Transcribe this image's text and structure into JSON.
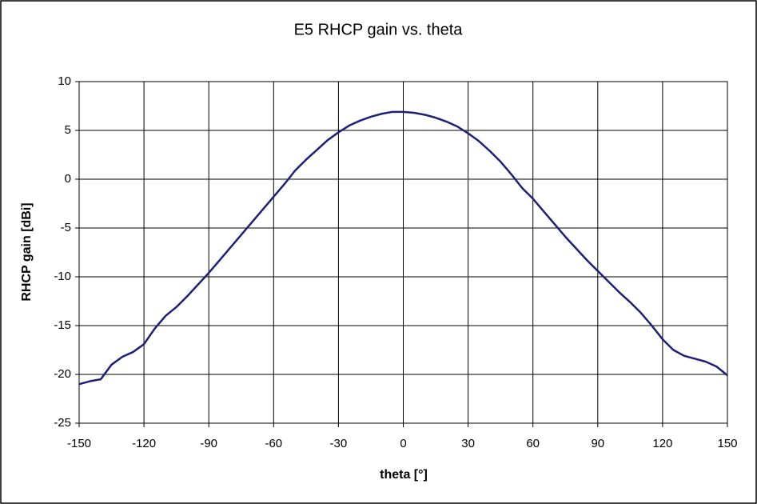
{
  "chart_data": {
    "type": "line",
    "title": "E5 RHCP gain vs. theta",
    "xlabel": "theta [°]",
    "ylabel": "RHCP gain [dBi]",
    "x": [
      -150,
      -145,
      -140,
      -135,
      -130,
      -125,
      -120,
      -115,
      -110,
      -105,
      -100,
      -95,
      -90,
      -85,
      -80,
      -75,
      -70,
      -65,
      -60,
      -55,
      -50,
      -45,
      -40,
      -35,
      -30,
      -25,
      -20,
      -15,
      -10,
      -5,
      0,
      5,
      10,
      15,
      20,
      25,
      30,
      35,
      40,
      45,
      50,
      55,
      60,
      65,
      70,
      75,
      80,
      85,
      90,
      95,
      100,
      105,
      110,
      115,
      120,
      125,
      130,
      135,
      140,
      145,
      150
    ],
    "series": [
      {
        "name": "RHCP gain",
        "color": "#1f1f78",
        "values": [
          -21.0,
          -20.7,
          -20.5,
          -19.0,
          -18.2,
          -17.7,
          -16.9,
          -15.3,
          -14.0,
          -13.1,
          -12.0,
          -10.8,
          -9.6,
          -8.3,
          -7.0,
          -5.7,
          -4.4,
          -3.1,
          -1.8,
          -0.5,
          0.9,
          2.0,
          3.0,
          4.0,
          4.8,
          5.5,
          6.0,
          6.4,
          6.7,
          6.9,
          6.9,
          6.8,
          6.6,
          6.3,
          5.9,
          5.4,
          4.7,
          3.9,
          2.9,
          1.8,
          0.5,
          -0.9,
          -2.0,
          -3.3,
          -4.6,
          -5.9,
          -7.1,
          -8.3,
          -9.4,
          -10.5,
          -11.6,
          -12.6,
          -13.7,
          -15.0,
          -16.4,
          -17.5,
          -18.1,
          -18.4,
          -18.7,
          -19.2,
          -20.1
        ]
      }
    ],
    "xlim": [
      -150,
      150
    ],
    "xticks": [
      -150,
      -120,
      -90,
      -60,
      -30,
      0,
      30,
      60,
      90,
      120,
      150
    ],
    "ylim": [
      -25,
      10
    ],
    "yticks": [
      -25,
      -20,
      -15,
      -10,
      -5,
      0,
      5,
      10
    ],
    "grid": true
  }
}
